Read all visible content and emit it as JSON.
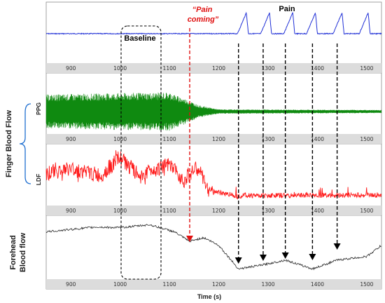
{
  "chart_data": {
    "type": "line",
    "x_range": [
      850,
      1530
    ],
    "x_ticks": [
      900,
      1000,
      1100,
      1200,
      1300,
      1400,
      1500
    ],
    "xlabel": "Time (s)",
    "group_label": "Finger Blood Flow",
    "annotations": {
      "baseline": "Baseline",
      "pain_coming_line1": "“Pain",
      "pain_coming_line2": "coming”",
      "pain": "Pain"
    },
    "baseline_window": [
      1010,
      1080
    ],
    "pain_coming_time": 1148,
    "pain_event_times": [
      1240,
      1290,
      1335,
      1390,
      1440
    ],
    "panels": [
      {
        "id": "pain",
        "ylabel": "",
        "color": "#1f2fd6",
        "baseline": 0.5,
        "pain_onsets": [
          1238,
          1285,
          1332,
          1378,
          1432,
          1485
        ]
      },
      {
        "id": "ppg",
        "ylabel": "PPG",
        "color": "#0f8a10",
        "profile": [
          [
            850,
            0.55
          ],
          [
            1000,
            0.6
          ],
          [
            1100,
            0.62
          ],
          [
            1140,
            0.35
          ],
          [
            1160,
            0.2
          ],
          [
            1200,
            0.07
          ],
          [
            1530,
            0.05
          ]
        ]
      },
      {
        "id": "ldf",
        "ylabel": "LDF",
        "color": "#ff1a1a",
        "profile": [
          [
            850,
            0.55
          ],
          [
            900,
            0.62
          ],
          [
            960,
            0.5
          ],
          [
            1000,
            0.82
          ],
          [
            1040,
            0.48
          ],
          [
            1060,
            0.6
          ],
          [
            1100,
            0.68
          ],
          [
            1115,
            0.55
          ],
          [
            1130,
            0.42
          ],
          [
            1145,
            0.58
          ],
          [
            1160,
            0.62
          ],
          [
            1175,
            0.28
          ],
          [
            1200,
            0.2
          ],
          [
            1240,
            0.15
          ],
          [
            1530,
            0.16
          ]
        ]
      },
      {
        "id": "forehead",
        "ylabel_line1": "Forehead",
        "ylabel_line2": "Blood flow",
        "color": "#2b2b2b",
        "profile": [
          [
            850,
            0.78
          ],
          [
            950,
            0.86
          ],
          [
            1000,
            0.85
          ],
          [
            1060,
            0.9
          ],
          [
            1110,
            0.78
          ],
          [
            1140,
            0.62
          ],
          [
            1170,
            0.68
          ],
          [
            1200,
            0.55
          ],
          [
            1240,
            0.15
          ],
          [
            1290,
            0.22
          ],
          [
            1335,
            0.3
          ],
          [
            1390,
            0.15
          ],
          [
            1440,
            0.3
          ],
          [
            1500,
            0.36
          ],
          [
            1530,
            0.55
          ]
        ]
      }
    ]
  }
}
